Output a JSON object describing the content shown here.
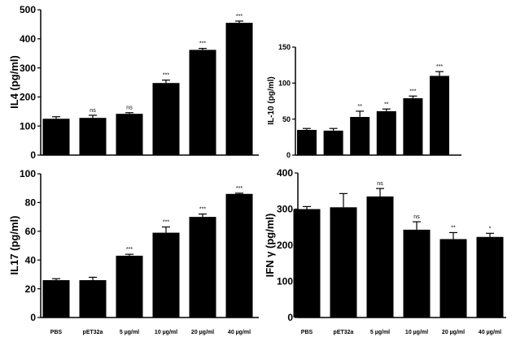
{
  "chart_data": [
    {
      "type": "bar",
      "ylabel": "IL4 (pg/ml)",
      "categories": [
        "PBS",
        "pET32a",
        "5 µg/ml",
        "10 µg/ml",
        "20 µg/ml",
        "40 µg/ml"
      ],
      "values": [
        125,
        128,
        142,
        248,
        362,
        455
      ],
      "errors": [
        7,
        9,
        4,
        10,
        5,
        6
      ],
      "significance": [
        "",
        "ns",
        "ns",
        "***",
        "***",
        "***"
      ],
      "ylim": [
        0,
        500
      ],
      "yticks": [
        0,
        100,
        200,
        300,
        400,
        500
      ]
    },
    {
      "type": "bar",
      "ylabel": "IL-10 (pg/ml)",
      "categories": [
        "PBS",
        "pET32a",
        "5 µg/ml",
        "10 µg/ml",
        "20 µg/ml",
        "40 µg/ml"
      ],
      "values": [
        35,
        34,
        53,
        61,
        79,
        110
      ],
      "errors": [
        2,
        3,
        8,
        3,
        3,
        6
      ],
      "significance": [
        "",
        "",
        "**",
        "**",
        "***",
        "***"
      ],
      "ylim": [
        0,
        150
      ],
      "yticks": [
        0,
        50,
        100,
        150
      ]
    },
    {
      "type": "bar",
      "ylabel": "IL17 (pg/ml)",
      "categories": [
        "PBS",
        "pET32a",
        "5 µg/ml",
        "10 µg/ml",
        "20 µg/ml",
        "40 µg/ml"
      ],
      "values": [
        26,
        26,
        43,
        59,
        70,
        86
      ],
      "errors": [
        1,
        2,
        1,
        4,
        2,
        0.5
      ],
      "significance": [
        "",
        "",
        "***",
        "***",
        "***",
        "***"
      ],
      "ylim": [
        0,
        100
      ],
      "yticks": [
        0,
        20,
        40,
        60,
        80,
        100
      ]
    },
    {
      "type": "bar",
      "ylabel": "IFN γ (pg/ml)",
      "categories": [
        "PBS",
        "pET32a",
        "5 µg/ml",
        "10 µg/ml",
        "20 µg/ml",
        "40 µg/ml"
      ],
      "values": [
        300,
        305,
        335,
        243,
        217,
        223
      ],
      "errors": [
        7,
        38,
        22,
        22,
        18,
        10
      ],
      "significance": [
        "",
        "",
        "ns",
        "ns",
        "**",
        "*"
      ],
      "ylim": [
        0,
        400
      ],
      "yticks": [
        0,
        100,
        200,
        300,
        400
      ]
    }
  ]
}
